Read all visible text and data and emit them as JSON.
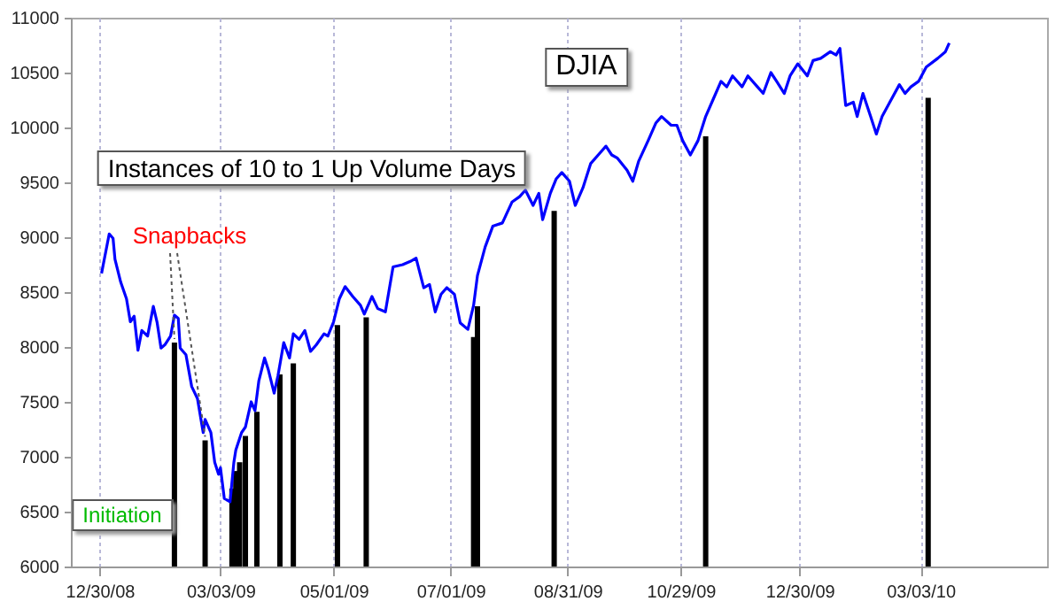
{
  "chart_data": {
    "type": "line",
    "title": "DJIA",
    "series": [
      {
        "color": "#0000ff",
        "x": [
          "2008-12-31",
          "2009-01-04",
          "2009-01-06",
          "2009-01-07",
          "2009-01-10",
          "2009-01-13",
          "2009-01-15",
          "2009-01-17",
          "2009-01-19",
          "2009-01-21",
          "2009-01-24",
          "2009-01-27",
          "2009-01-29",
          "2009-01-31",
          "2009-02-02",
          "2009-02-05",
          "2009-02-07",
          "2009-02-09",
          "2009-02-10",
          "2009-02-13",
          "2009-02-16",
          "2009-02-19",
          "2009-02-22",
          "2009-02-23",
          "2009-02-26",
          "2009-02-28",
          "2009-03-02",
          "2009-03-03",
          "2009-03-05",
          "2009-03-08",
          "2009-03-10",
          "2009-03-11",
          "2009-03-14",
          "2009-03-16",
          "2009-03-19",
          "2009-03-21",
          "2009-03-23",
          "2009-03-26",
          "2009-03-28",
          "2009-03-31",
          "2009-04-02",
          "2009-04-05",
          "2009-04-08",
          "2009-04-10",
          "2009-04-13",
          "2009-04-16",
          "2009-04-19",
          "2009-04-22",
          "2009-04-26",
          "2009-04-28",
          "2009-05-01",
          "2009-05-04",
          "2009-05-07",
          "2009-05-11",
          "2009-05-15",
          "2009-05-17",
          "2009-05-21",
          "2009-05-24",
          "2009-05-28",
          "2009-06-01",
          "2009-06-06",
          "2009-06-10",
          "2009-06-13",
          "2009-06-17",
          "2009-06-20",
          "2009-06-23",
          "2009-06-26",
          "2009-06-29",
          "2009-07-03",
          "2009-07-06",
          "2009-07-10",
          "2009-07-13",
          "2009-07-15",
          "2009-07-19",
          "2009-07-23",
          "2009-07-28",
          "2009-08-02",
          "2009-08-06",
          "2009-08-09",
          "2009-08-13",
          "2009-08-16",
          "2009-08-18",
          "2009-08-22",
          "2009-08-25",
          "2009-08-28",
          "2009-09-01",
          "2009-09-04",
          "2009-09-08",
          "2009-09-12",
          "2009-09-17",
          "2009-09-20",
          "2009-09-23",
          "2009-09-26",
          "2009-10-01",
          "2009-10-04",
          "2009-10-07",
          "2009-10-12",
          "2009-10-16",
          "2009-10-19",
          "2009-10-24",
          "2009-10-27",
          "2009-10-30",
          "2009-11-03",
          "2009-11-07",
          "2009-11-11",
          "2009-11-15",
          "2009-11-19",
          "2009-11-22",
          "2009-11-25",
          "2009-11-30",
          "2009-12-03",
          "2009-12-08",
          "2009-12-11",
          "2009-12-15",
          "2009-12-18",
          "2009-12-22",
          "2009-12-25",
          "2009-12-29",
          "2010-01-03",
          "2010-01-06",
          "2010-01-10",
          "2010-01-15",
          "2010-01-18",
          "2010-01-20",
          "2010-01-23",
          "2010-01-27",
          "2010-01-29",
          "2010-02-01",
          "2010-02-05",
          "2010-02-08",
          "2010-02-11",
          "2010-02-15",
          "2010-02-20",
          "2010-02-23",
          "2010-02-26",
          "2010-03-02",
          "2010-03-06",
          "2010-03-12",
          "2010-03-16",
          "2010-03-18"
        ],
        "values": [
          8670,
          9030,
          8990,
          8800,
          8590,
          8440,
          8230,
          8280,
          7970,
          8150,
          8100,
          8370,
          8220,
          7990,
          8020,
          8100,
          8290,
          8260,
          7990,
          7930,
          7640,
          7530,
          7220,
          7340,
          7220,
          6950,
          6840,
          6900,
          6620,
          6590,
          6950,
          7060,
          7220,
          7270,
          7500,
          7420,
          7690,
          7900,
          7790,
          7580,
          7740,
          8040,
          7900,
          8120,
          8070,
          8150,
          7960,
          8020,
          8120,
          8100,
          8230,
          8440,
          8550,
          8460,
          8380,
          8300,
          8460,
          8350,
          8320,
          8730,
          8750,
          8780,
          8810,
          8540,
          8570,
          8320,
          8480,
          8540,
          8480,
          8220,
          8160,
          8380,
          8650,
          8910,
          9100,
          9130,
          9320,
          9370,
          9430,
          9290,
          9400,
          9160,
          9400,
          9530,
          9590,
          9510,
          9290,
          9450,
          9670,
          9770,
          9830,
          9750,
          9720,
          9610,
          9510,
          9690,
          9880,
          10040,
          10100,
          10020,
          10020,
          9880,
          9750,
          9880,
          10100,
          10260,
          10420,
          10370,
          10470,
          10370,
          10470,
          10370,
          10310,
          10500,
          10420,
          10310,
          10470,
          10580,
          10470,
          10610,
          10630,
          10690,
          10660,
          10720,
          10200,
          10230,
          10100,
          10310,
          10100,
          9940,
          10100,
          10230,
          10390,
          10310,
          10370,
          10420,
          10550,
          10630,
          10690,
          10770
        ]
      },
      {
        "type": "bar",
        "color": "#000000",
        "x": [
          "2009-02-07",
          "2009-02-23",
          "2009-03-09",
          "2009-03-11",
          "2009-03-13",
          "2009-03-16",
          "2009-03-22",
          "2009-04-03",
          "2009-04-10",
          "2009-05-03",
          "2009-05-18",
          "2009-07-13",
          "2009-07-15",
          "2009-08-24",
          "2009-11-11",
          "2010-03-07"
        ],
        "values": [
          8040,
          7150,
          6710,
          6870,
          6950,
          7190,
          7410,
          7750,
          7850,
          8200,
          8270,
          8090,
          8370,
          9240,
          9920,
          10270
        ]
      }
    ],
    "xlim": [
      "2008-12-15",
      "2010-05-08"
    ],
    "xticks": [
      {
        "value": "2008-12-30",
        "label": "12/30/08"
      },
      {
        "value": "2009-03-03",
        "label": "03/03/09"
      },
      {
        "value": "2009-05-01",
        "label": "05/01/09"
      },
      {
        "value": "2009-07-01",
        "label": "07/01/09"
      },
      {
        "value": "2009-08-31",
        "label": "08/31/09"
      },
      {
        "value": "2009-10-29",
        "label": "10/29/09"
      },
      {
        "value": "2009-12-30",
        "label": "12/30/09"
      },
      {
        "value": "2010-03-03",
        "label": "03/03/10"
      }
    ],
    "ylim": [
      6000,
      11000
    ],
    "yticks": [
      6000,
      6500,
      7000,
      7500,
      8000,
      8500,
      9000,
      9500,
      10000,
      10500,
      11000
    ],
    "grid": "x",
    "annotations": [
      {
        "text": "Snapbacks",
        "x": "2009-02-07",
        "y": 8040
      },
      "Initiation",
      "Instances of 10 to 1 Up Volume Days"
    ]
  }
}
